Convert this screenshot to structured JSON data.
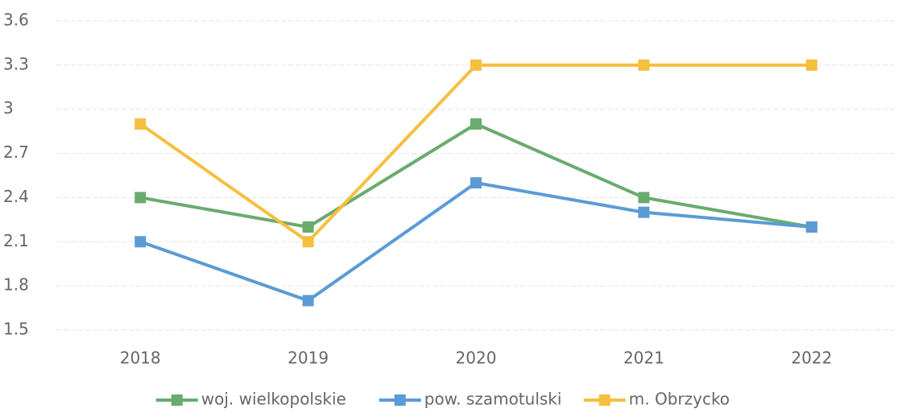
{
  "chart_data": {
    "type": "line",
    "categories": [
      "2018",
      "2019",
      "2020",
      "2021",
      "2022"
    ],
    "series": [
      {
        "name": "woj. wielkopolskie",
        "color": "#6aab6e",
        "values": [
          2.4,
          2.2,
          2.9,
          2.4,
          2.2
        ]
      },
      {
        "name": "pow. szamotulski",
        "color": "#5b9bd5",
        "values": [
          2.1,
          1.7,
          2.5,
          2.3,
          2.2
        ]
      },
      {
        "name": "m. Obrzycko",
        "color": "#f5bf3f",
        "values": [
          2.9,
          2.1,
          3.3,
          3.3,
          3.3
        ]
      }
    ],
    "ylim": [
      1.5,
      3.6
    ],
    "yticks": [
      1.5,
      1.8,
      2.1,
      2.4,
      2.7,
      3,
      3.3,
      3.6
    ],
    "grid": true,
    "legend": "bottom"
  }
}
